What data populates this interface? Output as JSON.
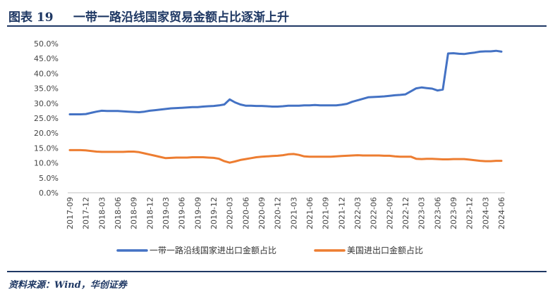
{
  "header": {
    "figure_label": "图表 19",
    "title": "一带一路沿线国家贸易金额占比逐渐上升"
  },
  "footer": {
    "source": "资料来源：Wind，华创证券"
  },
  "colors": {
    "accent": "#1f3864",
    "series_1": "#4472c4",
    "series_2": "#ed7d31"
  },
  "chart_data": {
    "type": "line",
    "title": "",
    "xlabel": "",
    "ylabel": "",
    "ylim": [
      0,
      50
    ],
    "yticks": [
      "0.0%",
      "5.0%",
      "10.0%",
      "15.0%",
      "20.0%",
      "25.0%",
      "30.0%",
      "35.0%",
      "40.0%",
      "45.0%",
      "50.0%"
    ],
    "grid": false,
    "legend_position": "bottom",
    "x": [
      "2017-09",
      "2017-10",
      "2017-11",
      "2017-12",
      "2018-01",
      "2018-02",
      "2018-03",
      "2018-04",
      "2018-05",
      "2018-06",
      "2018-07",
      "2018-08",
      "2018-09",
      "2018-10",
      "2018-11",
      "2018-12",
      "2019-01",
      "2019-02",
      "2019-03",
      "2019-04",
      "2019-05",
      "2019-06",
      "2019-07",
      "2019-08",
      "2019-09",
      "2019-10",
      "2019-11",
      "2019-12",
      "2020-01",
      "2020-02",
      "2020-03",
      "2020-04",
      "2020-05",
      "2020-06",
      "2020-07",
      "2020-08",
      "2020-09",
      "2020-10",
      "2020-11",
      "2020-12",
      "2021-01",
      "2021-02",
      "2021-03",
      "2021-04",
      "2021-05",
      "2021-06",
      "2021-07",
      "2021-08",
      "2021-09",
      "2021-10",
      "2021-11",
      "2021-12",
      "2022-01",
      "2022-02",
      "2022-03",
      "2022-04",
      "2022-05",
      "2022-06",
      "2022-07",
      "2022-08",
      "2022-09",
      "2022-10",
      "2022-11",
      "2022-12",
      "2023-01",
      "2023-02",
      "2023-03",
      "2023-04",
      "2023-05",
      "2023-06",
      "2023-07",
      "2023-08",
      "2023-09",
      "2023-10",
      "2023-11",
      "2023-12",
      "2024-01",
      "2024-02",
      "2024-03",
      "2024-04",
      "2024-05",
      "2024-06"
    ],
    "xticks": [
      "2017-09",
      "2017-12",
      "2018-03",
      "2018-06",
      "2018-09",
      "2018-12",
      "2019-03",
      "2019-06",
      "2019-09",
      "2019-12",
      "2020-03",
      "2020-06",
      "2020-09",
      "2020-12",
      "2021-03",
      "2021-06",
      "2021-09",
      "2021-12",
      "2022-03",
      "2022-06",
      "2022-09",
      "2022-12",
      "2023-03",
      "2023-06",
      "2023-09",
      "2023-12",
      "2024-03",
      "2024-06"
    ],
    "series": [
      {
        "name": "一带一路沿线国家进出口金额占比",
        "color": "#4472c4",
        "values": [
          26.3,
          26.3,
          26.3,
          26.4,
          26.8,
          27.2,
          27.5,
          27.4,
          27.4,
          27.4,
          27.3,
          27.2,
          27.1,
          27.0,
          27.2,
          27.5,
          27.7,
          27.9,
          28.1,
          28.3,
          28.4,
          28.5,
          28.6,
          28.7,
          28.7,
          28.9,
          29.0,
          29.1,
          29.3,
          29.6,
          31.3,
          30.3,
          29.6,
          29.2,
          29.2,
          29.1,
          29.1,
          29.0,
          28.9,
          28.9,
          29.0,
          29.2,
          29.2,
          29.2,
          29.3,
          29.3,
          29.4,
          29.3,
          29.3,
          29.3,
          29.3,
          29.5,
          29.8,
          30.5,
          31.0,
          31.5,
          32.0,
          32.1,
          32.2,
          32.3,
          32.5,
          32.7,
          32.8,
          33.0,
          34.0,
          35.0,
          35.3,
          35.1,
          34.9,
          34.3,
          34.6,
          46.7,
          46.8,
          46.6,
          46.5,
          46.8,
          47.0,
          47.3,
          47.4,
          47.4,
          47.6,
          47.3
        ]
      },
      {
        "name": "美国进出口金额占比",
        "color": "#ed7d31",
        "values": [
          14.3,
          14.3,
          14.3,
          14.2,
          14.0,
          13.8,
          13.7,
          13.7,
          13.7,
          13.7,
          13.7,
          13.8,
          13.8,
          13.6,
          13.2,
          12.8,
          12.4,
          12.0,
          11.6,
          11.7,
          11.8,
          11.8,
          11.8,
          11.9,
          11.9,
          11.9,
          11.8,
          11.7,
          11.4,
          10.6,
          10.1,
          10.5,
          11.0,
          11.3,
          11.6,
          11.9,
          12.1,
          12.2,
          12.3,
          12.4,
          12.6,
          12.9,
          13.0,
          12.7,
          12.2,
          12.1,
          12.1,
          12.1,
          12.1,
          12.1,
          12.2,
          12.3,
          12.4,
          12.5,
          12.6,
          12.5,
          12.5,
          12.5,
          12.5,
          12.4,
          12.4,
          12.2,
          12.1,
          12.1,
          12.1,
          11.4,
          11.3,
          11.4,
          11.4,
          11.3,
          11.2,
          11.2,
          11.3,
          11.3,
          11.3,
          11.1,
          10.9,
          10.7,
          10.6,
          10.6,
          10.7,
          10.7
        ]
      }
    ]
  }
}
